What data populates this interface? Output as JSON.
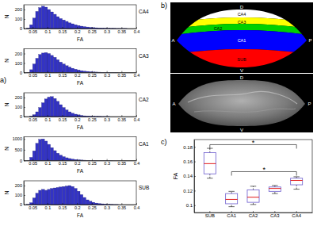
{
  "panels": [
    "a)",
    "b)",
    "c)"
  ],
  "image": {
    "regions": [
      {
        "name": "CA4",
        "color": "#ffffff"
      },
      {
        "name": "CA3",
        "color": "#ffff00"
      },
      {
        "name": "CA2",
        "color": "#00d000"
      },
      {
        "name": "CA1",
        "color": "#0000ff"
      },
      {
        "name": "SUB",
        "color": "#ff0000"
      }
    ],
    "orientation_labels": [
      "D",
      "A",
      "P",
      "V"
    ]
  },
  "chart_data": [
    {
      "type": "histogram",
      "title": "CA4",
      "x_label": "FA",
      "y_label": "N",
      "color": "#3333c4",
      "bins": [
        0.02,
        0.03,
        0.04,
        0.05,
        0.06,
        0.07,
        0.08,
        0.09,
        0.1,
        0.11,
        0.12,
        0.13,
        0.14,
        0.15,
        0.16,
        0.17,
        0.18,
        0.19,
        0.2,
        0.21,
        0.22,
        0.23,
        0.24,
        0.25,
        0.26,
        0.27,
        0.28,
        0.29,
        0.3,
        0.31,
        0.32,
        0.33,
        0.34,
        0.35,
        0.36,
        0.37,
        0.38,
        0.39,
        0.4
      ],
      "values": [
        0,
        5,
        40,
        110,
        180,
        220,
        235,
        225,
        200,
        175,
        150,
        125,
        105,
        90,
        75,
        60,
        50,
        40,
        32,
        25,
        20,
        16,
        12,
        10,
        8,
        6,
        5,
        4,
        3,
        2,
        2,
        1,
        1,
        1,
        1,
        0,
        0,
        0
      ],
      "xlim": [
        0.02,
        0.4
      ],
      "ylim": [
        0,
        250
      ],
      "xticks": [
        0.05,
        0.1,
        0.15,
        0.2,
        0.25,
        0.3,
        0.35,
        0.4
      ],
      "yticks": [
        0,
        100,
        200
      ]
    },
    {
      "type": "histogram",
      "title": "CA3",
      "x_label": "FA",
      "y_label": "N",
      "color": "#3333c4",
      "bins": [
        0.02,
        0.03,
        0.04,
        0.05,
        0.06,
        0.07,
        0.08,
        0.09,
        0.1,
        0.11,
        0.12,
        0.13,
        0.14,
        0.15,
        0.16,
        0.17,
        0.18,
        0.19,
        0.2,
        0.21,
        0.22,
        0.23,
        0.24,
        0.25,
        0.26,
        0.27,
        0.28,
        0.29,
        0.3,
        0.31,
        0.32,
        0.33,
        0.34,
        0.35,
        0.36,
        0.37,
        0.38,
        0.39,
        0.4
      ],
      "values": [
        0,
        3,
        30,
        90,
        150,
        190,
        205,
        210,
        200,
        180,
        160,
        135,
        110,
        90,
        72,
        58,
        45,
        35,
        27,
        20,
        15,
        12,
        9,
        7,
        5,
        4,
        3,
        2,
        2,
        1,
        1,
        1,
        0,
        0,
        0,
        0,
        0,
        0
      ],
      "xlim": [
        0.02,
        0.4
      ],
      "ylim": [
        0,
        250
      ],
      "xticks": [
        0.05,
        0.1,
        0.15,
        0.2,
        0.25,
        0.3,
        0.35,
        0.4
      ],
      "yticks": [
        0,
        100,
        200
      ]
    },
    {
      "type": "histogram",
      "title": "CA2",
      "x_label": "FA",
      "y_label": "N",
      "color": "#3333c4",
      "bins": [
        0.02,
        0.03,
        0.04,
        0.05,
        0.06,
        0.07,
        0.08,
        0.09,
        0.1,
        0.11,
        0.12,
        0.13,
        0.14,
        0.15,
        0.16,
        0.17,
        0.18,
        0.19,
        0.2,
        0.21,
        0.22,
        0.23,
        0.24,
        0.25,
        0.26,
        0.27,
        0.28,
        0.29,
        0.3,
        0.31,
        0.32,
        0.33,
        0.34,
        0.35,
        0.36,
        0.37,
        0.38,
        0.39,
        0.4
      ],
      "values": [
        0,
        0,
        5,
        20,
        50,
        95,
        145,
        185,
        205,
        210,
        190,
        160,
        125,
        95,
        70,
        50,
        35,
        25,
        18,
        12,
        8,
        6,
        4,
        3,
        2,
        2,
        1,
        1,
        1,
        0,
        0,
        0,
        0,
        0,
        0,
        0,
        0,
        0
      ],
      "xlim": [
        0.02,
        0.4
      ],
      "ylim": [
        0,
        250
      ],
      "xticks": [
        0.05,
        0.1,
        0.15,
        0.2,
        0.25,
        0.3,
        0.35,
        0.4
      ],
      "yticks": [
        0,
        100,
        200
      ]
    },
    {
      "type": "histogram",
      "title": "CA1",
      "x_label": "FA",
      "y_label": "N",
      "color": "#3333c4",
      "bins": [
        0.02,
        0.03,
        0.04,
        0.05,
        0.06,
        0.07,
        0.08,
        0.09,
        0.1,
        0.11,
        0.12,
        0.13,
        0.14,
        0.15,
        0.16,
        0.17,
        0.18,
        0.19,
        0.2,
        0.21,
        0.22,
        0.23,
        0.24,
        0.25,
        0.26,
        0.27,
        0.28,
        0.29,
        0.3,
        0.31,
        0.32,
        0.33,
        0.34,
        0.35,
        0.36,
        0.37,
        0.38,
        0.39,
        0.4
      ],
      "values": [
        0,
        10,
        150,
        450,
        800,
        980,
        1000,
        900,
        750,
        600,
        460,
        340,
        250,
        180,
        130,
        95,
        70,
        50,
        35,
        25,
        18,
        13,
        9,
        6,
        4,
        3,
        2,
        1,
        1,
        1,
        0,
        0,
        0,
        0,
        0,
        0,
        0,
        0
      ],
      "xlim": [
        0.02,
        0.4
      ],
      "ylim": [
        0,
        1100
      ],
      "xticks": [
        0.05,
        0.1,
        0.15,
        0.2,
        0.25,
        0.3,
        0.35,
        0.4
      ],
      "yticks": [
        0,
        500,
        1000
      ]
    },
    {
      "type": "histogram",
      "title": "SUB",
      "x_label": "FA",
      "y_label": "N",
      "color": "#3333c4",
      "bins": [
        0.02,
        0.03,
        0.04,
        0.05,
        0.06,
        0.07,
        0.08,
        0.09,
        0.1,
        0.11,
        0.12,
        0.13,
        0.14,
        0.15,
        0.16,
        0.17,
        0.18,
        0.19,
        0.2,
        0.21,
        0.22,
        0.23,
        0.24,
        0.25,
        0.26,
        0.27,
        0.28,
        0.29,
        0.3,
        0.31,
        0.32,
        0.33,
        0.34,
        0.35,
        0.36,
        0.37,
        0.38,
        0.39,
        0.4
      ],
      "values": [
        0,
        2,
        20,
        70,
        120,
        150,
        160,
        150,
        160,
        170,
        175,
        180,
        185,
        190,
        195,
        200,
        190,
        170,
        140,
        105,
        75,
        50,
        35,
        24,
        16,
        11,
        8,
        5,
        3,
        2,
        1,
        1,
        0,
        0,
        0,
        0,
        0,
        0
      ],
      "xlim": [
        0.02,
        0.4
      ],
      "ylim": [
        0,
        250
      ],
      "xticks": [
        0.05,
        0.1,
        0.15,
        0.2,
        0.25,
        0.3,
        0.35,
        0.4
      ],
      "yticks": [
        0,
        100,
        200
      ]
    },
    {
      "type": "box",
      "y_label": "FA",
      "color": "#6a5acd",
      "categories": [
        "SUB",
        "CA1",
        "CA2",
        "CA3",
        "CA4"
      ],
      "boxes": [
        {
          "min": 0.137,
          "q1": 0.143,
          "median": 0.157,
          "q3": 0.172,
          "max": 0.178
        },
        {
          "min": 0.098,
          "q1": 0.102,
          "median": 0.108,
          "q3": 0.116,
          "max": 0.119
        },
        {
          "min": 0.101,
          "q1": 0.104,
          "median": 0.111,
          "q3": 0.121,
          "max": 0.126
        },
        {
          "min": 0.116,
          "q1": 0.119,
          "median": 0.123,
          "q3": 0.125,
          "max": 0.127
        },
        {
          "min": 0.122,
          "q1": 0.128,
          "median": 0.134,
          "q3": 0.137,
          "max": 0.139
        }
      ],
      "significance": [
        {
          "from": 0,
          "to": 4,
          "y": 0.183,
          "label": "*"
        },
        {
          "from": 1,
          "to": 4,
          "y": 0.146,
          "label": "*"
        }
      ],
      "ylim": [
        0.09,
        0.19
      ],
      "yticks": [
        0.1,
        0.12,
        0.14,
        0.16,
        0.18
      ]
    }
  ]
}
